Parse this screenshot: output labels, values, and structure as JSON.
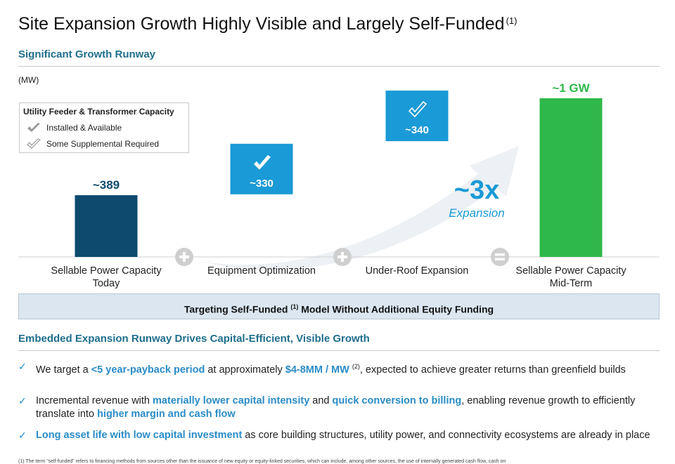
{
  "title": {
    "text": "Site Expansion Growth Highly Visible and Largely Self-Funded",
    "note": "(1)"
  },
  "section1": {
    "heading": "Significant Growth Runway",
    "unit": "(MW)"
  },
  "legend": {
    "title": "Utility Feeder & Transformer Capacity",
    "items": [
      {
        "label": "Installed & Available",
        "icon": "check-solid-icon"
      },
      {
        "label": "Some Supplemental Required",
        "icon": "check-outline-icon"
      }
    ]
  },
  "chart_data": {
    "type": "bar",
    "subtype": "waterfall",
    "unit": "(MW)",
    "categories": [
      "Sellable Power Capacity Today",
      "Equipment Optimization",
      "Under-Roof Expansion",
      "Sellable Power Capacity Mid-Term"
    ],
    "category_lines": [
      [
        "Sellable Power Capacity",
        "Today"
      ],
      [
        "Equipment Optimization"
      ],
      [
        "Under-Roof Expansion"
      ],
      [
        "Sellable Power Capacity",
        "Mid-Term"
      ]
    ],
    "values": [
      389,
      330,
      340,
      1000
    ],
    "value_labels": [
      "~389",
      "~330",
      "~340",
      "~1 GW"
    ],
    "bar_kind": [
      "total",
      "increment",
      "increment",
      "total"
    ],
    "bar_icons": [
      "",
      "check-solid-icon",
      "check-outline-icon",
      ""
    ],
    "operators": [
      "+",
      "+",
      "="
    ],
    "colors": {
      "base": "#0d4a6e",
      "increment": "#1a9ad6",
      "result": "#2fb84a",
      "value_green": "#2fb84a",
      "value_dark": "#0d4a6e",
      "multiplier": "#1a9ad6",
      "operator": "#cfcfcf",
      "arrow": "#edf0f4"
    },
    "multiplier": {
      "value": "~3x",
      "label": "Expansion"
    }
  },
  "banner": {
    "text_before": "Targeting Self-Funded ",
    "note": "(1)",
    "text_after": " Model Without Additional Equity Funding"
  },
  "section2": {
    "heading": "Embedded Expansion Runway Drives Capital-Efficient, Visible Growth"
  },
  "bullets": [
    {
      "parts": [
        {
          "t": "We target a "
        },
        {
          "t": "<5 year-payback period",
          "hl": true
        },
        {
          "t": " at approximately "
        },
        {
          "t": "$4-8MM / MW",
          "hl": true
        },
        {
          "t": " "
        },
        {
          "t": "(2)",
          "sup": true
        },
        {
          "t": ", expected to achieve greater returns than greenfield builds"
        }
      ]
    },
    {
      "parts": [
        {
          "t": "Incremental revenue with "
        },
        {
          "t": "materially lower capital intensity",
          "hl": true
        },
        {
          "t": " and "
        },
        {
          "t": "quick conversion to billing",
          "hl": true
        },
        {
          "t": ", enabling revenue growth to efficiently translate into "
        },
        {
          "t": "higher margin and cash flow",
          "hl": true
        }
      ]
    },
    {
      "parts": [
        {
          "t": "Long asset life with low capital investment",
          "hl": true
        },
        {
          "t": " as core building structures, utility power, and connectivity ecosystems are already in place"
        }
      ]
    }
  ],
  "footnote": "(1) The term “self-funded” refers to financing methods from sources other than the issuance of new equity or equity-linked securities, which can include, among other sources, the use of internally generated cash flow, cash on"
}
